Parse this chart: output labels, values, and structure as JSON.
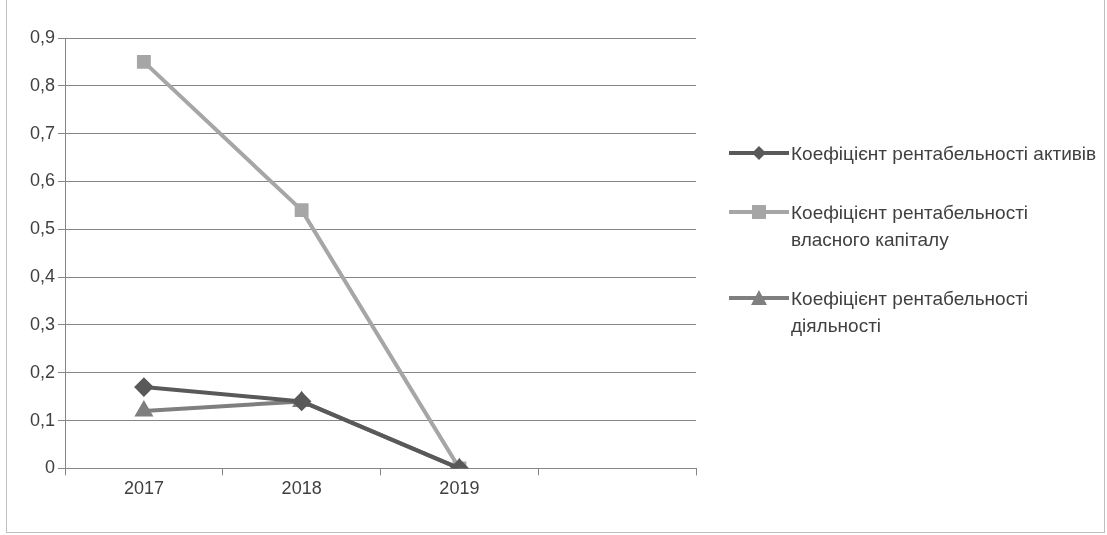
{
  "chart_data": {
    "type": "line",
    "categories": [
      "2017",
      "2018",
      "2019",
      null
    ],
    "series": [
      {
        "name": "Коефіцієнт рентабельності активів",
        "color": "#595959",
        "marker": "diamond",
        "values": [
          0.17,
          0.14,
          0,
          null
        ]
      },
      {
        "name": "Коефіцієнт рентабельності власного капіталу",
        "color": "#a6a6a6",
        "marker": "square",
        "values": [
          0.85,
          0.54,
          0,
          null
        ]
      },
      {
        "name": "Коефіцієнт рентабельності діяльності",
        "color": "#7f7f7f",
        "marker": "triangle",
        "values": [
          0.12,
          0.14,
          0,
          null
        ]
      }
    ],
    "ylim": [
      0,
      0.9
    ],
    "yticks": [
      0,
      {
        "value": 0.1,
        "label": "0,1"
      },
      {
        "value": 0.2,
        "label": "0,2"
      },
      {
        "value": 0.3,
        "label": "0,3"
      },
      {
        "value": 0.4,
        "label": "0,4"
      },
      {
        "value": 0.5,
        "label": "0,5"
      },
      {
        "value": 0.6,
        "label": "0,6"
      },
      {
        "value": 0.7,
        "label": "0,7"
      },
      {
        "value": 0.8,
        "label": "0,8"
      },
      {
        "value": 0.9,
        "label": "0,9"
      }
    ],
    "grid": "y",
    "legend": "right"
  }
}
